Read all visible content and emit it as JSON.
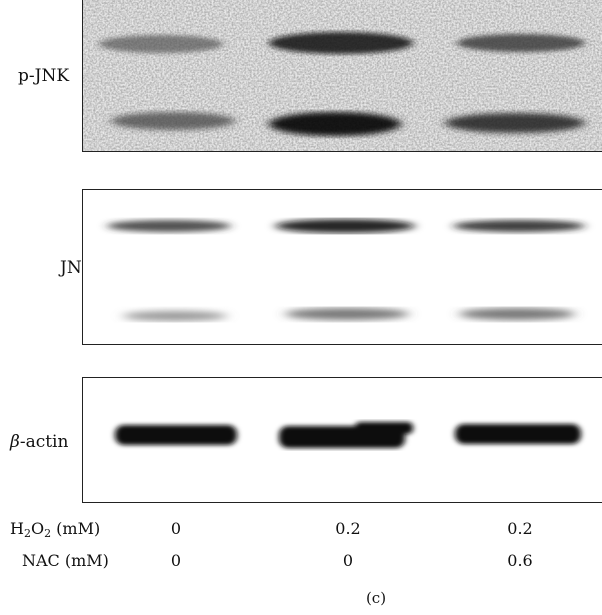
{
  "figure": {
    "panel_letter": "(c)",
    "blots": [
      {
        "label": "p-JNK"
      },
      {
        "label": "JNK"
      },
      {
        "label_prefix": "β",
        "label_suffix": "-actin"
      }
    ],
    "conditions": [
      {
        "name_main": "H",
        "name_sub1": "2",
        "name_mid": "O",
        "name_sub2": "2",
        "name_unit": " (mM)",
        "values": [
          "0",
          "0.2",
          "0.2"
        ]
      },
      {
        "name_main": "NAC (mM)",
        "values": [
          "0",
          "0",
          "0.6"
        ]
      }
    ]
  }
}
